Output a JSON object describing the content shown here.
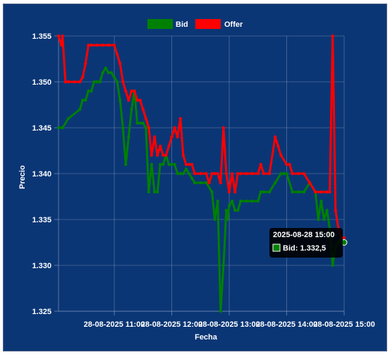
{
  "chart_data": {
    "type": "line",
    "title": "",
    "xlabel": "Fecha",
    "ylabel": "Precio",
    "ylim": [
      1.325,
      1.355
    ],
    "y_ticks": [
      "1.325",
      "1.330",
      "1.335",
      "1.340",
      "1.345",
      "1.350",
      "1.355"
    ],
    "x_ticks": [
      "28-08-2025 11:00",
      "28-08-2025 12:00",
      "28-08-2025 13:00",
      "28-08-2025 14:00",
      "28-08-2025 15:00"
    ],
    "x_ticks_values": [
      11,
      12,
      13,
      14,
      15
    ],
    "xlim": [
      10.03,
      15.0
    ],
    "grid": true,
    "legend_position": "top",
    "series": [
      {
        "name": "Bid",
        "color": "#008000",
        "x": [
          10.03,
          10.1,
          10.2,
          10.4,
          10.45,
          10.5,
          10.55,
          10.6,
          10.65,
          10.7,
          10.75,
          10.8,
          10.85,
          10.9,
          10.95,
          11.0,
          11.05,
          11.1,
          11.15,
          11.2,
          11.25,
          11.3,
          11.35,
          11.4,
          11.45,
          11.5,
          11.55,
          11.6,
          11.65,
          11.7,
          11.75,
          11.8,
          11.85,
          11.9,
          11.95,
          12.0,
          12.05,
          12.1,
          12.15,
          12.2,
          12.25,
          12.3,
          12.35,
          12.4,
          12.5,
          12.6,
          12.7,
          12.75,
          12.8,
          12.85,
          12.9,
          12.95,
          12.97,
          13.0,
          13.05,
          13.1,
          13.15,
          13.2,
          13.3,
          13.4,
          13.5,
          13.55,
          13.6,
          13.7,
          13.8,
          13.9,
          13.95,
          14.0,
          14.1,
          14.2,
          14.3,
          14.4,
          14.5,
          14.55,
          14.6,
          14.65,
          14.7,
          14.75,
          14.8,
          14.85,
          14.9,
          14.95,
          15.0
        ],
        "values": [
          1.345,
          1.345,
          1.346,
          1.347,
          1.348,
          1.348,
          1.349,
          1.349,
          1.35,
          1.35,
          1.35,
          1.351,
          1.3515,
          1.351,
          1.351,
          1.3505,
          1.35,
          1.348,
          1.345,
          1.341,
          1.344,
          1.347,
          1.349,
          1.3455,
          1.3455,
          1.3455,
          1.345,
          1.338,
          1.341,
          1.338,
          1.338,
          1.341,
          1.341,
          1.342,
          1.341,
          1.341,
          1.341,
          1.34,
          1.34,
          1.34,
          1.3405,
          1.34,
          1.3395,
          1.339,
          1.339,
          1.339,
          1.338,
          1.335,
          1.337,
          1.325,
          1.33,
          1.336,
          1.335,
          1.3365,
          1.337,
          1.336,
          1.336,
          1.337,
          1.337,
          1.337,
          1.337,
          1.338,
          1.338,
          1.338,
          1.339,
          1.34,
          1.34,
          1.34,
          1.338,
          1.338,
          1.338,
          1.339,
          1.338,
          1.335,
          1.337,
          1.335,
          1.336,
          1.334,
          1.33,
          1.332,
          1.3325,
          1.333,
          1.3325
        ]
      },
      {
        "name": "Offer",
        "color": "#ff0000",
        "x": [
          10.03,
          10.08,
          10.1,
          10.15,
          10.2,
          10.3,
          10.4,
          10.45,
          10.5,
          10.55,
          10.6,
          10.7,
          10.8,
          10.9,
          11.0,
          11.05,
          11.1,
          11.15,
          11.2,
          11.25,
          11.3,
          11.35,
          11.4,
          11.45,
          11.5,
          11.55,
          11.6,
          11.65,
          11.7,
          11.75,
          11.8,
          11.85,
          11.9,
          11.95,
          12.0,
          12.05,
          12.1,
          12.15,
          12.2,
          12.25,
          12.3,
          12.35,
          12.4,
          12.5,
          12.6,
          12.65,
          12.7,
          12.75,
          12.8,
          12.85,
          12.9,
          12.95,
          13.0,
          13.05,
          13.1,
          13.15,
          13.2,
          13.3,
          13.4,
          13.5,
          13.55,
          13.6,
          13.7,
          13.8,
          13.85,
          13.9,
          14.0,
          14.05,
          14.1,
          14.2,
          14.3,
          14.4,
          14.5,
          14.6,
          14.7,
          14.75,
          14.8,
          14.85,
          14.9,
          14.95,
          15.0
        ],
        "values": [
          1.355,
          1.354,
          1.355,
          1.35,
          1.35,
          1.35,
          1.35,
          1.3505,
          1.352,
          1.354,
          1.354,
          1.354,
          1.354,
          1.354,
          1.354,
          1.353,
          1.352,
          1.35,
          1.349,
          1.348,
          1.349,
          1.349,
          1.348,
          1.348,
          1.347,
          1.346,
          1.345,
          1.342,
          1.344,
          1.342,
          1.343,
          1.342,
          1.342,
          1.343,
          1.344,
          1.345,
          1.344,
          1.346,
          1.342,
          1.341,
          1.341,
          1.341,
          1.34,
          1.34,
          1.34,
          1.339,
          1.34,
          1.34,
          1.34,
          1.339,
          1.345,
          1.34,
          1.338,
          1.34,
          1.338,
          1.34,
          1.34,
          1.34,
          1.34,
          1.34,
          1.341,
          1.34,
          1.34,
          1.344,
          1.343,
          1.342,
          1.341,
          1.341,
          1.34,
          1.34,
          1.34,
          1.339,
          1.338,
          1.338,
          1.338,
          1.338,
          1.355,
          1.336,
          1.334,
          1.333,
          1.333
        ]
      }
    ],
    "tooltip": {
      "title": "2025-08-28 15:00",
      "label": "Bid: 1.332,5"
    }
  }
}
